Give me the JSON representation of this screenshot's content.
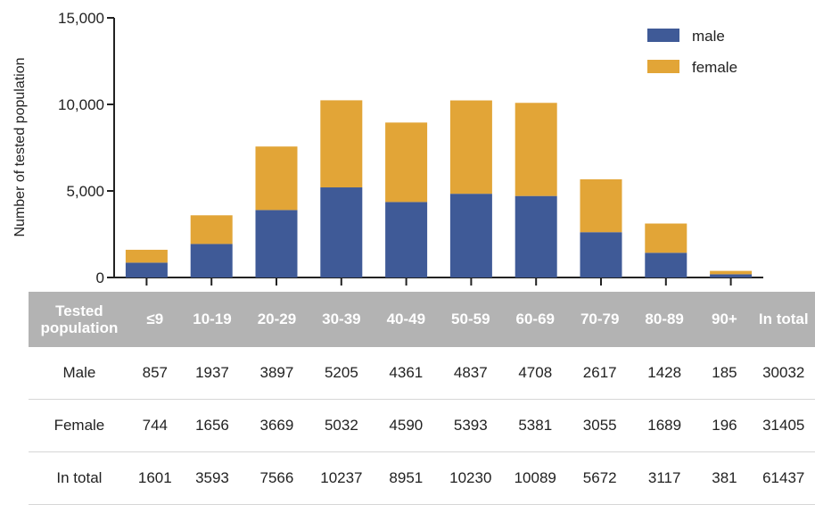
{
  "colors": {
    "male": "#3f5a97",
    "female": "#e2a537",
    "header_bg": "#b3b3b3"
  },
  "chart_data": {
    "type": "bar",
    "stacked": true,
    "categories": [
      "≤9",
      "10-19",
      "20-29",
      "30-39",
      "40-49",
      "50-59",
      "60-69",
      "70-79",
      "80-89",
      "90+"
    ],
    "series": [
      {
        "name": "male",
        "values": [
          857,
          1937,
          3897,
          5205,
          4361,
          4837,
          4708,
          2617,
          1428,
          185
        ]
      },
      {
        "name": "female",
        "values": [
          744,
          1656,
          3669,
          5032,
          4590,
          5393,
          5381,
          3055,
          1689,
          196
        ]
      }
    ],
    "ylabel": "Number of tested population",
    "ylim": [
      0,
      15000
    ],
    "yticks": [
      0,
      5000,
      10000,
      15000
    ],
    "ytick_labels": [
      "0",
      "5,000",
      "10,000",
      "15,000"
    ],
    "legend_position": "top-right",
    "grid": false
  },
  "table": {
    "corner_label": "Tested population",
    "columns": [
      "≤9",
      "10-19",
      "20-29",
      "30-39",
      "40-49",
      "50-59",
      "60-69",
      "70-79",
      "80-89",
      "90+",
      "In total"
    ],
    "rows": [
      {
        "label": "Male",
        "values": [
          "857",
          "1937",
          "3897",
          "5205",
          "4361",
          "4837",
          "4708",
          "2617",
          "1428",
          "185",
          "30032"
        ]
      },
      {
        "label": "Female",
        "values": [
          "744",
          "1656",
          "3669",
          "5032",
          "4590",
          "5393",
          "5381",
          "3055",
          "1689",
          "196",
          "31405"
        ]
      },
      {
        "label": "In total",
        "values": [
          "1601",
          "3593",
          "7566",
          "10237",
          "8951",
          "10230",
          "10089",
          "5672",
          "3117",
          "381",
          "61437"
        ]
      }
    ]
  }
}
